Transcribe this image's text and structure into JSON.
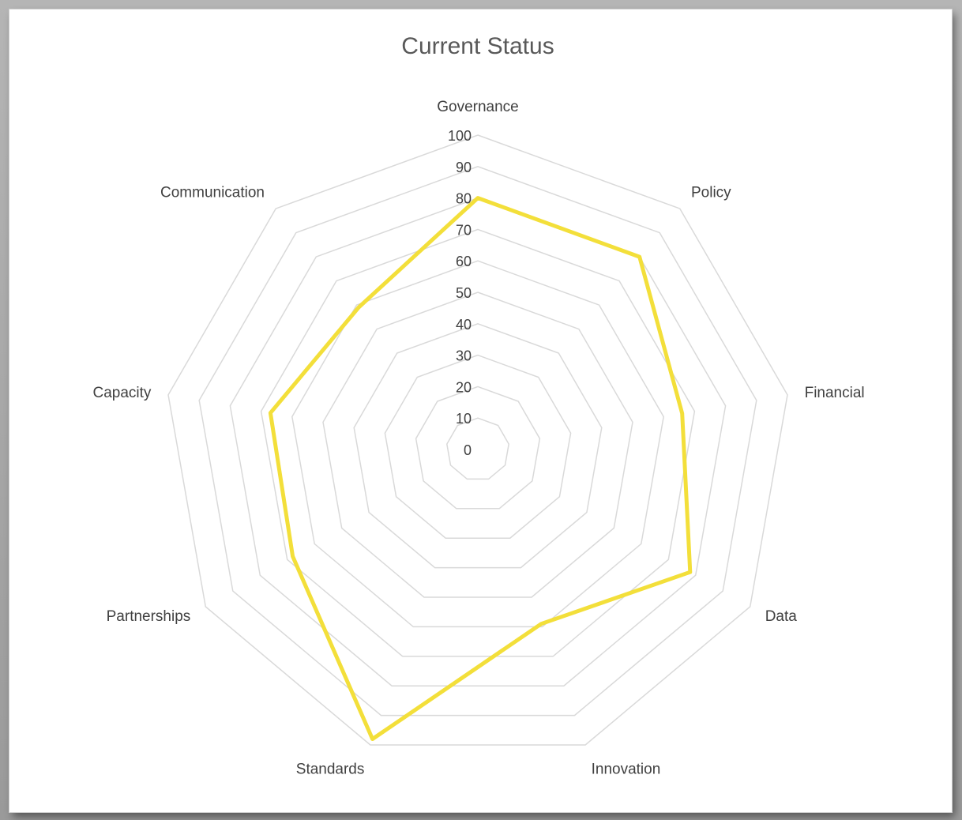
{
  "chart_data": {
    "type": "radar",
    "title": "Current Status",
    "categories": [
      "Governance",
      "Policy",
      "Financial",
      "Data",
      "Innovation",
      "Standards",
      "Partnerships",
      "Capacity",
      "Communication"
    ],
    "series": [
      {
        "values": [
          80,
          80,
          66,
          78,
          59,
          98,
          68,
          67,
          59
        ]
      }
    ],
    "rlim": [
      0,
      100
    ],
    "ticks": [
      "0",
      "10",
      "20",
      "30",
      "40",
      "50",
      "60",
      "70",
      "80",
      "90",
      "100"
    ],
    "grid": true,
    "legend": "none",
    "colors": {
      "series": "#f3df3a",
      "grid": "#d9d9d9",
      "text": "#404040",
      "title": "#595959"
    }
  }
}
